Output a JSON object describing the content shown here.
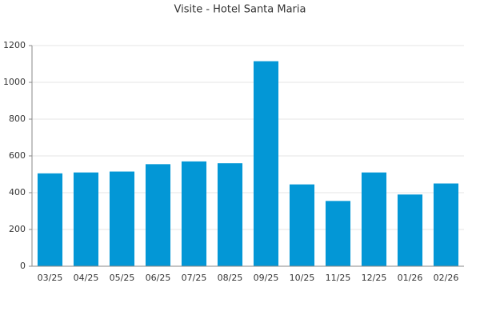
{
  "chart_data": {
    "type": "bar",
    "title": "Visite - Hotel Santa Maria",
    "categories": [
      "03/25",
      "04/25",
      "05/25",
      "06/25",
      "07/25",
      "08/25",
      "09/25",
      "10/25",
      "11/25",
      "12/25",
      "01/26",
      "02/26"
    ],
    "values": [
      505,
      510,
      515,
      555,
      570,
      560,
      1115,
      445,
      355,
      510,
      390,
      450
    ],
    "color": "#0397d6",
    "ylim": [
      0,
      1200
    ],
    "yticks": [
      0,
      200,
      400,
      600,
      800,
      1000,
      1200
    ],
    "grid": true
  }
}
